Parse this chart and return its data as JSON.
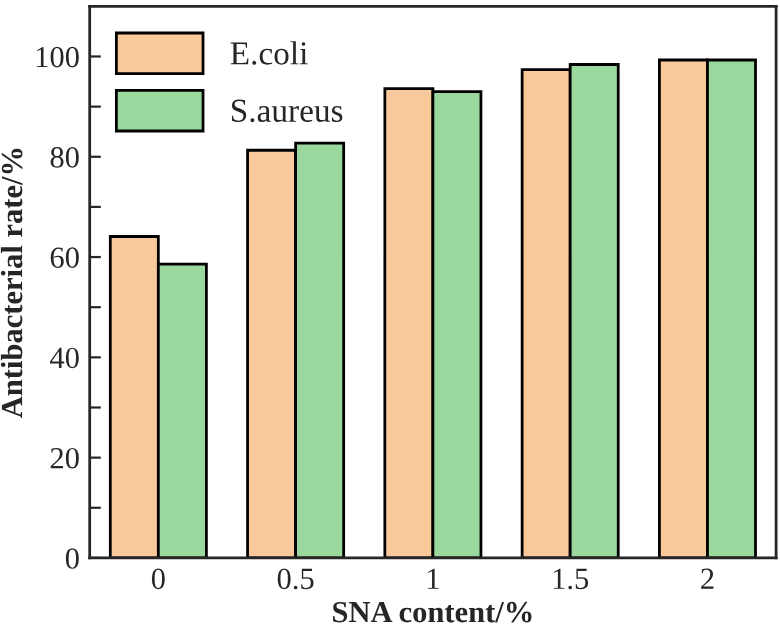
{
  "chart_data": {
    "type": "bar",
    "xlabel": "SNA content/%",
    "ylabel": "Antibacterial rate/%",
    "categories": [
      "0",
      "0.5",
      "1",
      "1.5",
      "2"
    ],
    "series": [
      {
        "name": "E.coli",
        "color": "#f9c89b",
        "values": [
          64.1,
          81.3,
          93.6,
          97.4,
          99.3
        ]
      },
      {
        "name": "S.aureus",
        "color": "#9ad89e",
        "values": [
          58.6,
          82.7,
          93.0,
          98.4,
          99.3
        ]
      }
    ],
    "ylim": [
      0,
      110
    ],
    "yticks": [
      0,
      {
        "value": 10,
        "label": null
      },
      20,
      {
        "value": 30,
        "label": null
      },
      40,
      {
        "value": 50,
        "label": null
      },
      60,
      {
        "value": 70,
        "label": null
      },
      80,
      {
        "value": 90,
        "label": null
      },
      100
    ],
    "legend": "top left",
    "grid": false
  }
}
